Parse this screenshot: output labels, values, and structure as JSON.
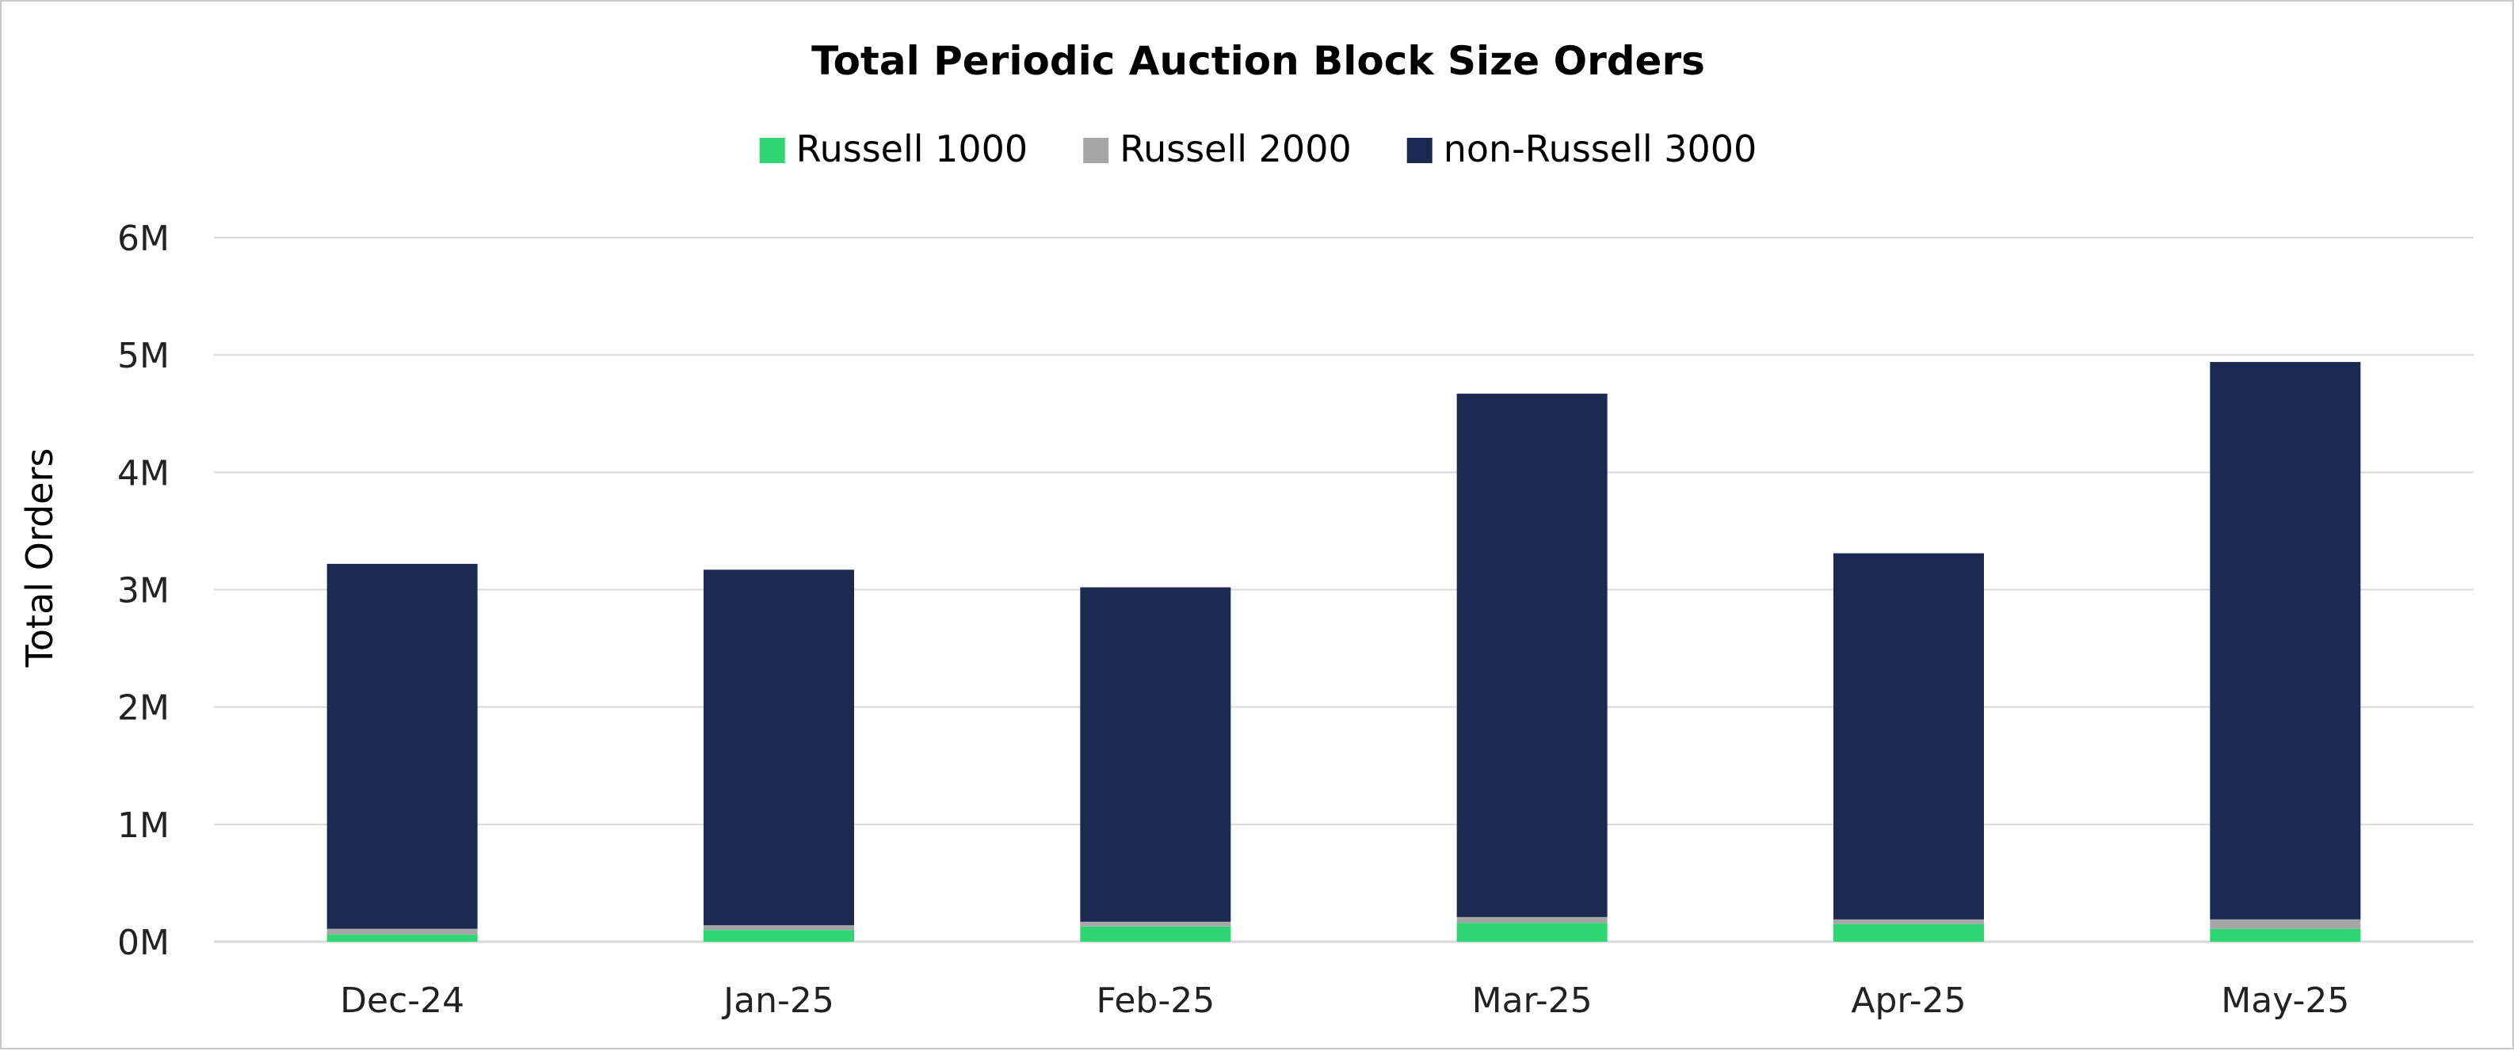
{
  "chart_data": {
    "type": "bar",
    "stacked": true,
    "title": "Total Periodic Auction Block Size Orders",
    "ylabel": "Total Orders",
    "xlabel": "",
    "categories": [
      "Dec-24",
      "Jan-25",
      "Feb-25",
      "Mar-25",
      "Apr-25",
      "May-25"
    ],
    "ylim": [
      0,
      6000000
    ],
    "yticks": [
      0,
      1000000,
      2000000,
      3000000,
      4000000,
      5000000,
      6000000
    ],
    "ytick_labels": [
      "0M",
      "1M",
      "2M",
      "3M",
      "4M",
      "5M",
      "6M"
    ],
    "grid": true,
    "legend_position": "top-center",
    "series": [
      {
        "name": "Russell 1000",
        "color": "#2ed573",
        "values": [
          60000,
          100000,
          130000,
          160000,
          150000,
          110000
        ]
      },
      {
        "name": "Russell 2000",
        "color": "#a6a6a6",
        "values": [
          50000,
          40000,
          40000,
          50000,
          40000,
          80000
        ]
      },
      {
        "name": "non-Russell 3000",
        "color": "#1c2951",
        "values": [
          3110000,
          3030000,
          2850000,
          4460000,
          3120000,
          4750000
        ]
      }
    ]
  }
}
